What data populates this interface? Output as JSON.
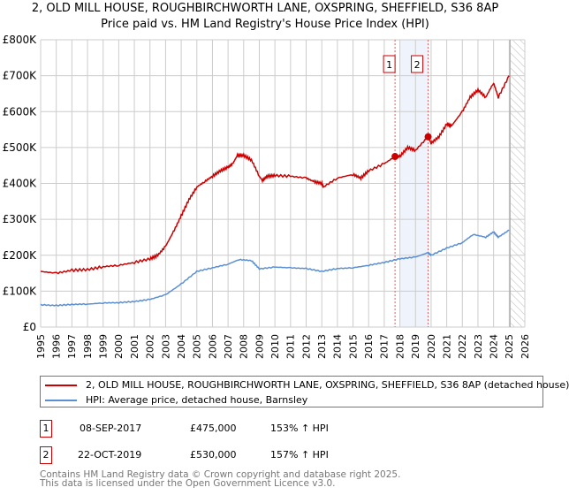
{
  "title": "2, OLD MILL HOUSE, ROUGHBIRCHWORTH LANE, OXSPRING, SHEFFIELD, S36 8AP",
  "subtitle": "Price paid vs. HM Land Registry's House Price Index (HPI)",
  "chart_data": {
    "type": "line",
    "xlim": [
      1995,
      2026
    ],
    "ylim": [
      0,
      800000
    ],
    "x_ticks": [
      "1995",
      "1996",
      "1997",
      "1998",
      "1999",
      "2000",
      "2001",
      "2002",
      "2003",
      "2004",
      "2005",
      "2006",
      "2007",
      "2008",
      "2009",
      "2010",
      "2011",
      "2012",
      "2013",
      "2014",
      "2015",
      "2016",
      "2017",
      "2018",
      "2019",
      "2020",
      "2021",
      "2022",
      "2023",
      "2024",
      "2025",
      "2026"
    ],
    "y_ticks": [
      {
        "v": 0,
        "label": "£0"
      },
      {
        "v": 100000,
        "label": "£100K"
      },
      {
        "v": 200000,
        "label": "£200K"
      },
      {
        "v": 300000,
        "label": "£300K"
      },
      {
        "v": 400000,
        "label": "£400K"
      },
      {
        "v": 500000,
        "label": "£500K"
      },
      {
        "v": 600000,
        "label": "£600K"
      },
      {
        "v": 700000,
        "label": "£700K"
      },
      {
        "v": 800000,
        "label": "£800K"
      }
    ],
    "grid": true,
    "series": [
      {
        "name": "2, OLD MILL HOUSE, ROUGHBIRCHWORTH LANE, OXSPRING, SHEFFIELD, S36 8AP (detached house)",
        "color": "#cc0000",
        "x": [
          1995,
          1996,
          1997,
          1998,
          1999,
          2000,
          2001,
          2002,
          2002.5,
          2003,
          2003.5,
          2004,
          2004.5,
          2005,
          2005.5,
          2006,
          2006.5,
          2007,
          2007.3,
          2007.6,
          2008,
          2008.5,
          2009,
          2009.2,
          2009.5,
          2010,
          2011,
          2012,
          2012.5,
          2013,
          2013.1,
          2014,
          2015,
          2015.5,
          2016,
          2017,
          2017.69,
          2018,
          2018.5,
          2019,
          2019.81,
          2020,
          2020.5,
          2021,
          2021.3,
          2022,
          2022.5,
          2023,
          2023.5,
          2024,
          2024.3,
          2025
        ],
        "y": [
          155000,
          150000,
          158000,
          160000,
          168000,
          172000,
          180000,
          190000,
          200000,
          225000,
          265000,
          310000,
          355000,
          390000,
          405000,
          420000,
          435000,
          445000,
          455000,
          478000,
          478000,
          465000,
          420000,
          408000,
          420000,
          422000,
          420000,
          415000,
          405000,
          400000,
          390000,
          415000,
          425000,
          415000,
          435000,
          455000,
          475000,
          475000,
          500000,
          492000,
          530000,
          512000,
          530000,
          565000,
          560000,
          600000,
          640000,
          660000,
          640000,
          680000,
          640000,
          700000
        ]
      },
      {
        "name": "HPI: Average price, detached house, Barnsley",
        "color": "#5b8fd4",
        "x": [
          1995,
          1996,
          1997,
          1998,
          1999,
          2000,
          2001,
          2002,
          2003,
          2004,
          2005,
          2006,
          2007,
          2007.7,
          2008.5,
          2009,
          2010,
          2011,
          2012,
          2013,
          2014,
          2015,
          2016,
          2017,
          2018,
          2019,
          2019.8,
          2020,
          2021,
          2022,
          2022.7,
          2023.5,
          2024,
          2024.3,
          2025
        ],
        "y": [
          62000,
          60000,
          63000,
          64000,
          67000,
          68000,
          71000,
          77000,
          90000,
          120000,
          155000,
          165000,
          175000,
          188000,
          185000,
          162000,
          167000,
          165000,
          163000,
          155000,
          163000,
          165000,
          172000,
          180000,
          190000,
          195000,
          207000,
          200000,
          220000,
          235000,
          258000,
          250000,
          265000,
          250000,
          270000
        ]
      }
    ],
    "sales": [
      {
        "id": "1",
        "x": 2017.69,
        "price": 475000
      },
      {
        "id": "2",
        "x": 2019.81,
        "price": 530000
      }
    ],
    "legend_placement": "below"
  },
  "legend": {
    "property": "2, OLD MILL HOUSE, ROUGHBIRCHWORTH LANE, OXSPRING, SHEFFIELD, S36 8AP (detached house)",
    "hpi": "HPI: Average price, detached house, Barnsley"
  },
  "transactions": [
    {
      "id": "1",
      "date": "08-SEP-2017",
      "price": "£475,000",
      "delta": "153% ↑ HPI"
    },
    {
      "id": "2",
      "date": "22-OCT-2019",
      "price": "£530,000",
      "delta": "157% ↑ HPI"
    }
  ],
  "footer": [
    "Contains HM Land Registry data © Crown copyright and database right 2025.",
    "This data is licensed under the Open Government Licence v3.0."
  ]
}
